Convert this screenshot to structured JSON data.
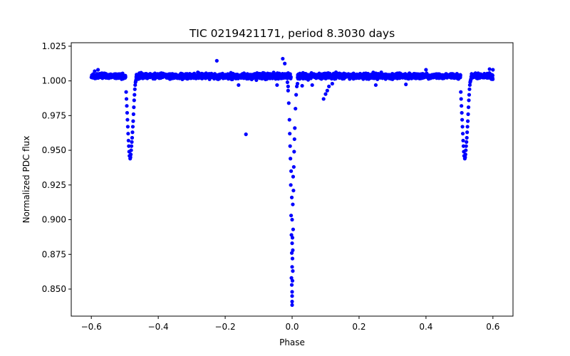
{
  "chart_data": {
    "type": "scatter",
    "title": "TIC 0219421171, period 8.3030 days",
    "xlabel": "Phase",
    "ylabel": "Normalized PDC flux",
    "xlim": [
      -0.66,
      0.66
    ],
    "ylim": [
      0.8305,
      1.0275
    ],
    "xticks": [
      -0.6,
      -0.4,
      -0.2,
      0.0,
      0.2,
      0.4,
      0.6
    ],
    "xtick_labels": [
      "−0.6",
      "−0.4",
      "−0.2",
      "0.0",
      "0.2",
      "0.4",
      "0.6"
    ],
    "yticks": [
      0.85,
      0.875,
      0.9,
      0.925,
      0.95,
      0.975,
      1.0,
      1.025
    ],
    "ytick_labels": [
      "0.850",
      "0.875",
      "0.900",
      "0.925",
      "0.950",
      "0.975",
      "1.000",
      "1.025"
    ],
    "grid": false,
    "marker_color": "#0000ff",
    "series": [
      {
        "name": "PDC flux",
        "baseline": {
          "x_range": [
            -0.6,
            0.6
          ],
          "flux_center": 1.0035,
          "flux_band": [
            0.998,
            1.007
          ],
          "gap_near_zero": [
            -0.002,
            0.016
          ]
        },
        "primary_eclipse": {
          "x": [
            0.0,
            0.0,
            0.0,
            0.0,
            -0.001,
            0.001,
            -0.002,
            0.002,
            0.0,
            0.001,
            -0.001,
            0.002,
            0.0,
            0.001,
            -0.002,
            0.003,
            0.0,
            -0.003,
            0.002,
            -0.001,
            0.004,
            -0.004,
            0.003,
            -0.003,
            0.005,
            -0.005,
            0.006,
            -0.006,
            0.007,
            -0.007,
            0.008,
            -0.008,
            0.01,
            -0.01,
            0.012,
            -0.012,
            0.014,
            0.016,
            -0.014
          ],
          "y": [
            0.8385,
            0.841,
            0.845,
            0.848,
            0.853,
            0.856,
            0.858,
            0.863,
            0.866,
            0.872,
            0.876,
            0.878,
            0.883,
            0.887,
            0.889,
            0.893,
            0.9,
            0.903,
            0.911,
            0.916,
            0.921,
            0.925,
            0.931,
            0.935,
            0.938,
            0.944,
            0.949,
            0.953,
            0.958,
            0.962,
            0.966,
            0.972,
            0.98,
            0.984,
            0.99,
            0.993,
            0.996,
            0.998,
            0.999
          ]
        },
        "secondary_eclipses": [
          {
            "x": [
              -0.484,
              -0.483,
              -0.482,
              -0.481,
              -0.48,
              -0.479,
              -0.478,
              -0.477,
              -0.476,
              -0.475,
              -0.474,
              -0.473,
              -0.486,
              -0.487,
              -0.488,
              -0.489,
              -0.49,
              -0.491,
              -0.492,
              -0.493,
              -0.494,
              -0.495,
              -0.496,
              -0.472,
              -0.471,
              -0.47,
              -0.469,
              -0.468,
              -0.467,
              -0.466
            ],
            "y": [
              0.944,
              0.945,
              0.947,
              0.95,
              0.953,
              0.956,
              0.959,
              0.963,
              0.967,
              0.971,
              0.976,
              0.981,
              0.946,
              0.949,
              0.953,
              0.957,
              0.962,
              0.967,
              0.972,
              0.977,
              0.982,
              0.987,
              0.992,
              0.986,
              0.99,
              0.994,
              0.997,
              0.999,
              1.0,
              1.001
            ]
          },
          {
            "x": [
              0.516,
              0.517,
              0.518,
              0.519,
              0.52,
              0.521,
              0.522,
              0.523,
              0.524,
              0.525,
              0.526,
              0.527,
              0.514,
              0.513,
              0.512,
              0.511,
              0.51,
              0.509,
              0.508,
              0.507,
              0.506,
              0.505,
              0.504,
              0.528,
              0.529,
              0.53,
              0.531,
              0.532,
              0.533,
              0.534
            ],
            "y": [
              0.944,
              0.945,
              0.947,
              0.95,
              0.953,
              0.956,
              0.959,
              0.963,
              0.967,
              0.971,
              0.976,
              0.981,
              0.946,
              0.949,
              0.953,
              0.957,
              0.962,
              0.967,
              0.972,
              0.977,
              0.982,
              0.987,
              0.992,
              0.986,
              0.99,
              0.994,
              0.997,
              0.999,
              1.0,
              1.001
            ]
          }
        ],
        "outliers": {
          "x": [
            -0.225,
            -0.138,
            -0.028,
            -0.022,
            -0.045,
            -0.012,
            0.03,
            0.06,
            0.094,
            0.1,
            0.105,
            0.11,
            0.12,
            0.34,
            0.4,
            -0.58,
            -0.59,
            0.59,
            0.6,
            -0.16,
            0.25
          ],
          "y": [
            1.0145,
            0.9615,
            1.016,
            1.0125,
            0.997,
            0.996,
            0.9965,
            0.997,
            0.987,
            0.9905,
            0.993,
            0.996,
            0.998,
            0.9975,
            1.008,
            1.008,
            1.007,
            1.0085,
            1.008,
            0.997,
            0.997
          ]
        }
      }
    ]
  }
}
